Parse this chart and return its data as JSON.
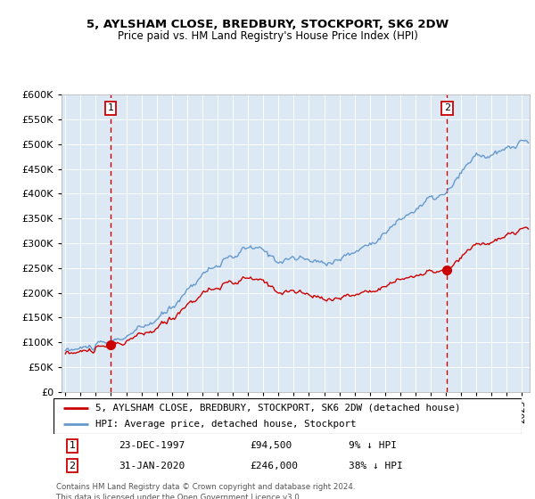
{
  "title1": "5, AYLSHAM CLOSE, BREDBURY, STOCKPORT, SK6 2DW",
  "title2": "Price paid vs. HM Land Registry's House Price Index (HPI)",
  "legend_line1": "5, AYLSHAM CLOSE, BREDBURY, STOCKPORT, SK6 2DW (detached house)",
  "legend_line2": "HPI: Average price, detached house, Stockport",
  "footnote": "Contains HM Land Registry data © Crown copyright and database right 2024.\nThis data is licensed under the Open Government Licence v3.0.",
  "marker1_date": "23-DEC-1997",
  "marker1_price": "£94,500",
  "marker1_hpi": "9% ↓ HPI",
  "marker1_x": 1997.97,
  "marker1_y": 94500,
  "marker2_date": "31-JAN-2020",
  "marker2_price": "£246,000",
  "marker2_hpi": "38% ↓ HPI",
  "marker2_x": 2020.08,
  "marker2_y": 246000,
  "price_color": "#cc0000",
  "hpi_color": "#6699cc",
  "background_color": "#dce9f5",
  "ylim": [
    0,
    600000
  ],
  "xlim_start": 1994.75,
  "xlim_end": 2025.5,
  "yticks": [
    0,
    50000,
    100000,
    150000,
    200000,
    250000,
    300000,
    350000,
    400000,
    450000,
    500000,
    550000,
    600000
  ]
}
